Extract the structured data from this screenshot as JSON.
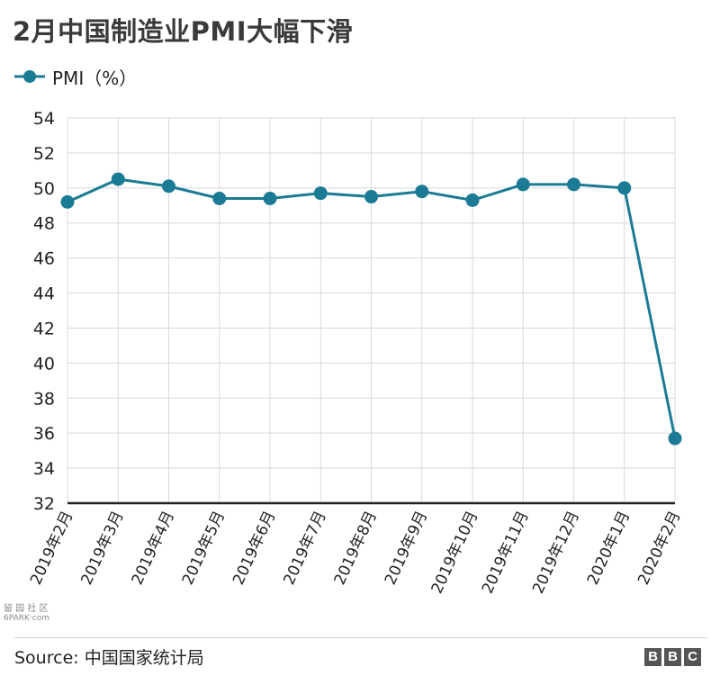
{
  "chart_data": {
    "type": "line",
    "title": "2月中国制造业PMI大幅下滑",
    "categories": [
      "2019年2月",
      "2019年3月",
      "2019年4月",
      "2019年5月",
      "2019年6月",
      "2019年7月",
      "2019年8月",
      "2019年9月",
      "2019年10月",
      "2019年11月",
      "2019年12月",
      "2020年1月",
      "2020年2月"
    ],
    "series": [
      {
        "name": "PMI（%）",
        "values": [
          49.2,
          50.5,
          50.1,
          49.4,
          49.4,
          49.7,
          49.5,
          49.8,
          49.3,
          50.2,
          50.2,
          50.0,
          35.7
        ],
        "color": "#1b7b95"
      }
    ],
    "ylim": [
      32,
      54
    ],
    "yticks": [
      "54",
      "52",
      "50",
      "48",
      "46",
      "44",
      "42",
      "40",
      "38",
      "36",
      "34",
      "32"
    ],
    "grid": true,
    "legend": "top-left"
  },
  "source": "Source: 中国国家统计局",
  "watermark": {
    "top": "留 园 社 区",
    "bottom": "6PARK·com"
  },
  "logo": [
    "B",
    "B",
    "C"
  ]
}
